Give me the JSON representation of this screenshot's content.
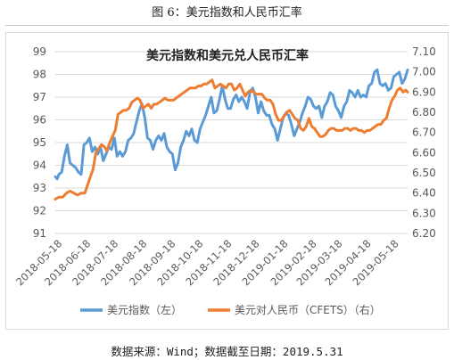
{
  "figure_caption": "图 6：美元指数和人民币汇率",
  "source_note": "数据来源：Wind；数据截至日期：2019.5.31",
  "colors": {
    "dxy": "#5b9bd5",
    "usdcny": "#ed7d31",
    "grid": "#d9d9d9",
    "text": "#595959",
    "title": "#222222"
  },
  "chart_data": {
    "type": "line",
    "title": "美元指数和美元兑人民币汇率",
    "grid": true,
    "legend_position": "bottom",
    "x": [
      "2018-05-18",
      "2018-06-18",
      "2018-07-18",
      "2018-08-18",
      "2018-09-18",
      "2018-10-18",
      "2018-11-18",
      "2018-12-18",
      "2019-01-18",
      "2019-02-18",
      "2019-03-18",
      "2019-04-18",
      "2019-05-18"
    ],
    "x_range": [
      "2018-05-14",
      "2019-05-31"
    ],
    "y_left": {
      "min": 91,
      "max": 99,
      "ticks": [
        "91",
        "92",
        "93",
        "94",
        "95",
        "96",
        "97",
        "98",
        "99"
      ]
    },
    "y_right": {
      "min": 6.2,
      "max": 7.1,
      "ticks": [
        "6.20",
        "6.30",
        "6.40",
        "6.50",
        "6.60",
        "6.70",
        "6.80",
        "6.90",
        "7.00",
        "7.10"
      ]
    },
    "series": [
      {
        "name": "美元指数（左）",
        "axis": "left",
        "color": "#5b9bd5",
        "points": [
          [
            "2018-05-14",
            93.5
          ],
          [
            "2018-05-16",
            93.4
          ],
          [
            "2018-05-18",
            93.6
          ],
          [
            "2018-05-21",
            93.7
          ],
          [
            "2018-05-24",
            94.4
          ],
          [
            "2018-05-27",
            94.9
          ],
          [
            "2018-05-30",
            94.1
          ],
          [
            "2018-06-02",
            94.0
          ],
          [
            "2018-06-05",
            93.9
          ],
          [
            "2018-06-08",
            93.7
          ],
          [
            "2018-06-11",
            93.6
          ],
          [
            "2018-06-14",
            94.9
          ],
          [
            "2018-06-17",
            95.0
          ],
          [
            "2018-06-20",
            95.2
          ],
          [
            "2018-06-23",
            94.6
          ],
          [
            "2018-06-26",
            94.8
          ],
          [
            "2018-06-29",
            94.5
          ],
          [
            "2018-07-02",
            94.8
          ],
          [
            "2018-07-05",
            94.2
          ],
          [
            "2018-07-08",
            94.5
          ],
          [
            "2018-07-11",
            94.8
          ],
          [
            "2018-07-14",
            94.7
          ],
          [
            "2018-07-17",
            95.2
          ],
          [
            "2018-07-20",
            94.4
          ],
          [
            "2018-07-23",
            94.6
          ],
          [
            "2018-07-26",
            94.4
          ],
          [
            "2018-07-29",
            94.6
          ],
          [
            "2018-08-01",
            95.1
          ],
          [
            "2018-08-04",
            95.2
          ],
          [
            "2018-08-07",
            95.4
          ],
          [
            "2018-08-10",
            95.9
          ],
          [
            "2018-08-13",
            96.4
          ],
          [
            "2018-08-16",
            96.7
          ],
          [
            "2018-08-19",
            96.1
          ],
          [
            "2018-08-22",
            95.2
          ],
          [
            "2018-08-25",
            95.1
          ],
          [
            "2018-08-28",
            94.7
          ],
          [
            "2018-08-31",
            95.1
          ],
          [
            "2018-09-03",
            95.3
          ],
          [
            "2018-09-06",
            95.1
          ],
          [
            "2018-09-09",
            95.4
          ],
          [
            "2018-09-12",
            94.8
          ],
          [
            "2018-09-15",
            94.6
          ],
          [
            "2018-09-18",
            94.5
          ],
          [
            "2018-09-21",
            93.8
          ],
          [
            "2018-09-24",
            94.1
          ],
          [
            "2018-09-27",
            94.8
          ],
          [
            "2018-09-30",
            95.1
          ],
          [
            "2018-10-03",
            95.5
          ],
          [
            "2018-10-06",
            95.3
          ],
          [
            "2018-10-09",
            95.6
          ],
          [
            "2018-10-12",
            95.1
          ],
          [
            "2018-10-15",
            95.0
          ],
          [
            "2018-10-18",
            95.6
          ],
          [
            "2018-10-21",
            95.9
          ],
          [
            "2018-10-24",
            96.2
          ],
          [
            "2018-10-27",
            96.6
          ],
          [
            "2018-10-30",
            97.0
          ],
          [
            "2018-11-02",
            96.3
          ],
          [
            "2018-11-05",
            96.4
          ],
          [
            "2018-11-08",
            96.9
          ],
          [
            "2018-11-11",
            97.5
          ],
          [
            "2018-11-14",
            96.9
          ],
          [
            "2018-11-17",
            96.5
          ],
          [
            "2018-11-20",
            96.5
          ],
          [
            "2018-11-23",
            96.9
          ],
          [
            "2018-11-26",
            97.1
          ],
          [
            "2018-11-29",
            96.8
          ],
          [
            "2018-12-02",
            97.0
          ],
          [
            "2018-12-05",
            96.8
          ],
          [
            "2018-12-08",
            96.5
          ],
          [
            "2018-12-11",
            97.2
          ],
          [
            "2018-12-14",
            97.4
          ],
          [
            "2018-12-17",
            97.0
          ],
          [
            "2018-12-20",
            96.3
          ],
          [
            "2018-12-23",
            96.8
          ],
          [
            "2018-12-26",
            96.4
          ],
          [
            "2018-12-29",
            96.2
          ],
          [
            "2019-01-01",
            96.2
          ],
          [
            "2019-01-04",
            95.8
          ],
          [
            "2019-01-07",
            95.6
          ],
          [
            "2019-01-10",
            95.1
          ],
          [
            "2019-01-13",
            95.6
          ],
          [
            "2019-01-16",
            96.1
          ],
          [
            "2019-01-19",
            96.3
          ],
          [
            "2019-01-22",
            96.2
          ],
          [
            "2019-01-25",
            95.8
          ],
          [
            "2019-01-28",
            95.3
          ],
          [
            "2019-01-31",
            95.6
          ],
          [
            "2019-02-03",
            95.9
          ],
          [
            "2019-02-06",
            96.3
          ],
          [
            "2019-02-09",
            96.6
          ],
          [
            "2019-02-12",
            97.0
          ],
          [
            "2019-02-15",
            96.9
          ],
          [
            "2019-02-18",
            96.6
          ],
          [
            "2019-02-21",
            96.5
          ],
          [
            "2019-02-24",
            96.6
          ],
          [
            "2019-02-27",
            96.1
          ],
          [
            "2019-03-02",
            96.6
          ],
          [
            "2019-03-05",
            96.8
          ],
          [
            "2019-03-08",
            97.2
          ],
          [
            "2019-03-11",
            97.1
          ],
          [
            "2019-03-14",
            96.6
          ],
          [
            "2019-03-17",
            96.4
          ],
          [
            "2019-03-20",
            96.1
          ],
          [
            "2019-03-23",
            96.6
          ],
          [
            "2019-03-26",
            96.8
          ],
          [
            "2019-03-29",
            97.3
          ],
          [
            "2019-04-01",
            97.2
          ],
          [
            "2019-04-04",
            97.0
          ],
          [
            "2019-04-07",
            97.3
          ],
          [
            "2019-04-10",
            97.0
          ],
          [
            "2019-04-13",
            97.1
          ],
          [
            "2019-04-16",
            97.0
          ],
          [
            "2019-04-19",
            97.5
          ],
          [
            "2019-04-22",
            97.6
          ],
          [
            "2019-04-25",
            98.1
          ],
          [
            "2019-04-28",
            98.2
          ],
          [
            "2019-05-01",
            97.6
          ],
          [
            "2019-05-04",
            97.5
          ],
          [
            "2019-05-07",
            97.6
          ],
          [
            "2019-05-10",
            97.3
          ],
          [
            "2019-05-13",
            97.4
          ],
          [
            "2019-05-16",
            97.9
          ],
          [
            "2019-05-19",
            98.0
          ],
          [
            "2019-05-22",
            98.1
          ],
          [
            "2019-05-25",
            97.6
          ],
          [
            "2019-05-28",
            97.8
          ],
          [
            "2019-05-31",
            98.2
          ]
        ]
      },
      {
        "name": "美元对人民币（CFETS）（右）",
        "axis": "right",
        "color": "#ed7d31",
        "points": [
          [
            "2018-05-14",
            6.37
          ],
          [
            "2018-05-18",
            6.38
          ],
          [
            "2018-05-22",
            6.38
          ],
          [
            "2018-05-26",
            6.4
          ],
          [
            "2018-05-30",
            6.41
          ],
          [
            "2018-06-03",
            6.4
          ],
          [
            "2018-06-07",
            6.39
          ],
          [
            "2018-06-11",
            6.4
          ],
          [
            "2018-06-15",
            6.4
          ],
          [
            "2018-06-18",
            6.44
          ],
          [
            "2018-06-21",
            6.48
          ],
          [
            "2018-06-24",
            6.52
          ],
          [
            "2018-06-27",
            6.6
          ],
          [
            "2018-06-30",
            6.62
          ],
          [
            "2018-07-03",
            6.64
          ],
          [
            "2018-07-06",
            6.63
          ],
          [
            "2018-07-09",
            6.61
          ],
          [
            "2018-07-12",
            6.65
          ],
          [
            "2018-07-15",
            6.68
          ],
          [
            "2018-07-18",
            6.71
          ],
          [
            "2018-07-21",
            6.79
          ],
          [
            "2018-07-24",
            6.8
          ],
          [
            "2018-07-27",
            6.81
          ],
          [
            "2018-07-30",
            6.81
          ],
          [
            "2018-08-02",
            6.82
          ],
          [
            "2018-08-05",
            6.85
          ],
          [
            "2018-08-08",
            6.86
          ],
          [
            "2018-08-11",
            6.87
          ],
          [
            "2018-08-14",
            6.86
          ],
          [
            "2018-08-17",
            6.82
          ],
          [
            "2018-08-20",
            6.83
          ],
          [
            "2018-08-23",
            6.84
          ],
          [
            "2018-08-26",
            6.82
          ],
          [
            "2018-08-29",
            6.84
          ],
          [
            "2018-09-01",
            6.84
          ],
          [
            "2018-09-04",
            6.85
          ],
          [
            "2018-09-07",
            6.86
          ],
          [
            "2018-09-10",
            6.87
          ],
          [
            "2018-09-13",
            6.86
          ],
          [
            "2018-09-16",
            6.86
          ],
          [
            "2018-09-19",
            6.86
          ],
          [
            "2018-09-22",
            6.87
          ],
          [
            "2018-09-25",
            6.88
          ],
          [
            "2018-09-28",
            6.89
          ],
          [
            "2018-10-01",
            6.9
          ],
          [
            "2018-10-04",
            6.91
          ],
          [
            "2018-10-07",
            6.92
          ],
          [
            "2018-10-10",
            6.92
          ],
          [
            "2018-10-13",
            6.92
          ],
          [
            "2018-10-16",
            6.93
          ],
          [
            "2018-10-19",
            6.93
          ],
          [
            "2018-10-22",
            6.94
          ],
          [
            "2018-10-25",
            6.94
          ],
          [
            "2018-10-28",
            6.95
          ],
          [
            "2018-10-31",
            6.96
          ],
          [
            "2018-11-03",
            6.92
          ],
          [
            "2018-11-06",
            6.93
          ],
          [
            "2018-11-09",
            6.94
          ],
          [
            "2018-11-12",
            6.93
          ],
          [
            "2018-11-15",
            6.92
          ],
          [
            "2018-11-18",
            6.94
          ],
          [
            "2018-11-21",
            6.94
          ],
          [
            "2018-11-24",
            6.91
          ],
          [
            "2018-11-27",
            6.92
          ],
          [
            "2018-11-30",
            6.94
          ],
          [
            "2018-12-03",
            6.91
          ],
          [
            "2018-12-06",
            6.88
          ],
          [
            "2018-12-09",
            6.9
          ],
          [
            "2018-12-12",
            6.91
          ],
          [
            "2018-12-15",
            6.9
          ],
          [
            "2018-12-18",
            6.89
          ],
          [
            "2018-12-21",
            6.89
          ],
          [
            "2018-12-24",
            6.89
          ],
          [
            "2018-12-27",
            6.87
          ],
          [
            "2018-12-30",
            6.86
          ],
          [
            "2019-01-02",
            6.86
          ],
          [
            "2019-01-05",
            6.84
          ],
          [
            "2019-01-08",
            6.79
          ],
          [
            "2019-01-11",
            6.76
          ],
          [
            "2019-01-14",
            6.76
          ],
          [
            "2019-01-17",
            6.78
          ],
          [
            "2019-01-20",
            6.8
          ],
          [
            "2019-01-23",
            6.81
          ],
          [
            "2019-01-26",
            6.79
          ],
          [
            "2019-01-29",
            6.77
          ],
          [
            "2019-02-01",
            6.76
          ],
          [
            "2019-02-04",
            6.72
          ],
          [
            "2019-02-07",
            6.71
          ],
          [
            "2019-02-10",
            6.73
          ],
          [
            "2019-02-13",
            6.77
          ],
          [
            "2019-02-16",
            6.73
          ],
          [
            "2019-02-19",
            6.72
          ],
          [
            "2019-02-22",
            6.7
          ],
          [
            "2019-02-25",
            6.68
          ],
          [
            "2019-02-28",
            6.68
          ],
          [
            "2019-03-03",
            6.69
          ],
          [
            "2019-03-06",
            6.71
          ],
          [
            "2019-03-09",
            6.72
          ],
          [
            "2019-03-12",
            6.72
          ],
          [
            "2019-03-15",
            6.71
          ],
          [
            "2019-03-18",
            6.71
          ],
          [
            "2019-03-21",
            6.71
          ],
          [
            "2019-03-24",
            6.72
          ],
          [
            "2019-03-27",
            6.72
          ],
          [
            "2019-03-30",
            6.71
          ],
          [
            "2019-04-02",
            6.72
          ],
          [
            "2019-04-05",
            6.72
          ],
          [
            "2019-04-08",
            6.71
          ],
          [
            "2019-04-11",
            6.71
          ],
          [
            "2019-04-14",
            6.7
          ],
          [
            "2019-04-17",
            6.71
          ],
          [
            "2019-04-20",
            6.71
          ],
          [
            "2019-04-23",
            6.72
          ],
          [
            "2019-04-26",
            6.73
          ],
          [
            "2019-04-29",
            6.74
          ],
          [
            "2019-05-02",
            6.74
          ],
          [
            "2019-05-05",
            6.76
          ],
          [
            "2019-05-08",
            6.77
          ],
          [
            "2019-05-11",
            6.82
          ],
          [
            "2019-05-14",
            6.86
          ],
          [
            "2019-05-17",
            6.88
          ],
          [
            "2019-05-20",
            6.91
          ],
          [
            "2019-05-23",
            6.92
          ],
          [
            "2019-05-26",
            6.9
          ],
          [
            "2019-05-29",
            6.91
          ],
          [
            "2019-05-31",
            6.9
          ]
        ]
      }
    ]
  }
}
